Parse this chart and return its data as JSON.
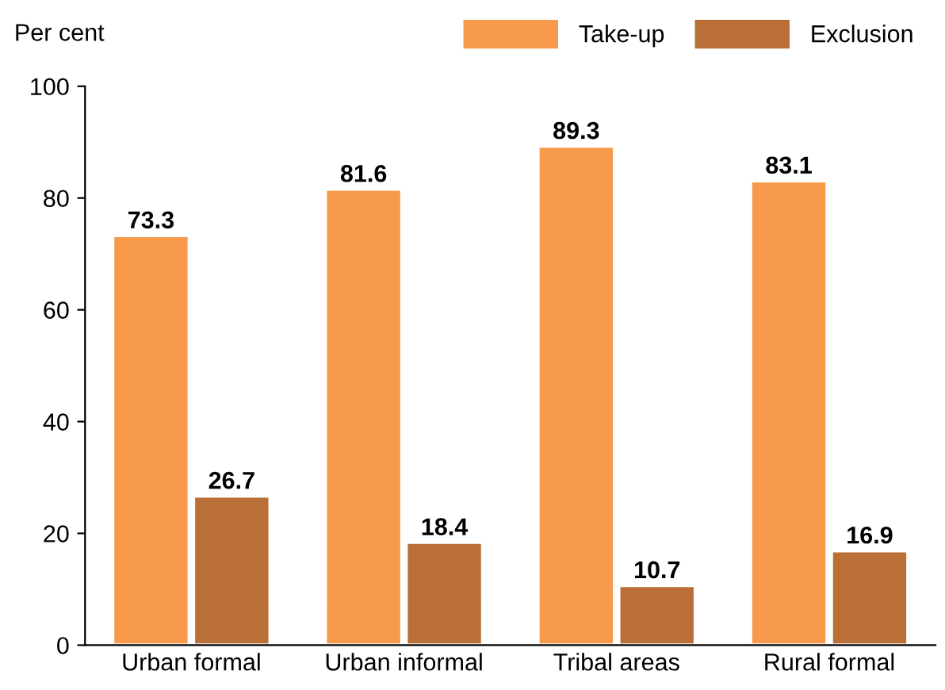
{
  "chart_data": {
    "type": "bar",
    "ylabel": "Per cent",
    "categories": [
      "Urban formal",
      "Urban informal",
      "Tribal areas",
      "Rural formal"
    ],
    "series": [
      {
        "name": "Take-up",
        "color": "#f79a4b",
        "values": [
          73.3,
          81.6,
          89.3,
          83.1
        ]
      },
      {
        "name": "Exclusion",
        "color": "#b96f35",
        "values": [
          26.7,
          18.4,
          10.7,
          16.9
        ]
      }
    ],
    "ylim": [
      0,
      100
    ],
    "yticks": [
      0,
      20,
      40,
      60,
      80,
      100
    ],
    "grid": false,
    "legend": "top right",
    "data_labels": true
  }
}
